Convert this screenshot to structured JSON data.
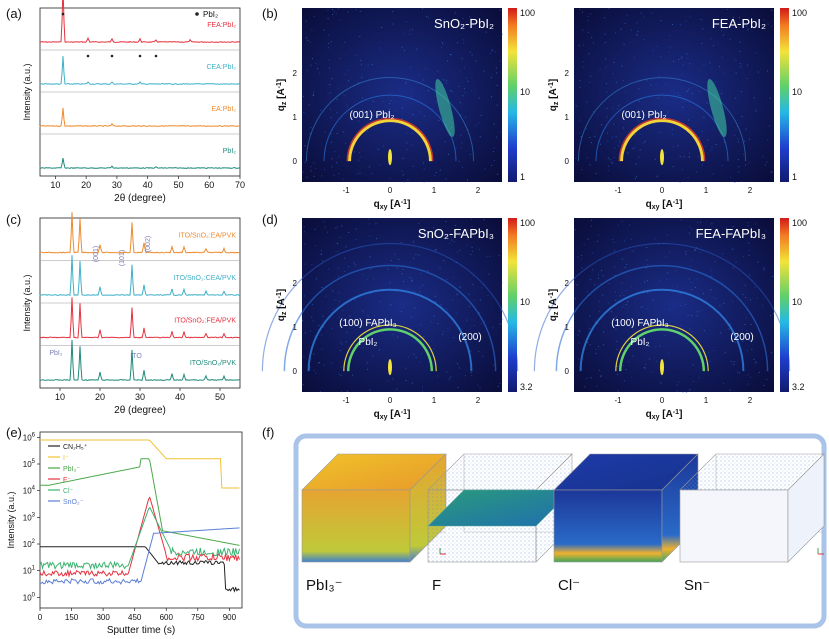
{
  "panel_labels": {
    "a": "(a)",
    "b": "(b)",
    "c": "(c)",
    "d": "(d)",
    "e": "(e)",
    "f": "(f)"
  },
  "panel_a": {
    "ylabel": "Intensity (a.u.)",
    "xlabel": "2θ (degree)",
    "xticks": [
      "10",
      "20",
      "30",
      "40",
      "50",
      "60",
      "70"
    ],
    "legend_marker_label": "PbI₂",
    "series": [
      {
        "name": "FEA:PbI₂",
        "color": "#e5323f"
      },
      {
        "name": "CEA:PbI₂",
        "color": "#3fb0c9"
      },
      {
        "name": "EA:PbI₂",
        "color": "#ee8a2e"
      },
      {
        "name": "PbI₂",
        "color": "#1f8a7a"
      }
    ]
  },
  "panel_c": {
    "ylabel": "Intensity (a.u.)",
    "xlabel": "2θ (degree)",
    "xticks": [
      "10",
      "20",
      "30",
      "40",
      "50"
    ],
    "peak_labels": [
      "(001)",
      "(101)",
      "(002)"
    ],
    "marker_labels": [
      "PbI₂",
      "ITO"
    ],
    "series": [
      {
        "name": "ITO/SnO₂:EA/PVK",
        "color": "#ee8a2e"
      },
      {
        "name": "ITO/SnO₂:CEA/PVK",
        "color": "#3fb0c9"
      },
      {
        "name": "ITO/SnO₂:FEA/PVK",
        "color": "#e5323f"
      },
      {
        "name": "ITO/SnO₂/PVK",
        "color": "#1f8a7a"
      }
    ]
  },
  "giwaxs": {
    "ylabel": "q",
    "ylabel_sub": "z",
    "xlabel": "q",
    "xlabel_sub": "xy",
    "unit": " [A",
    "unit_exp": "-1",
    "unit_close": "]",
    "xticks": [
      "-1",
      "0",
      "1",
      "2"
    ],
    "yticks": [
      "0",
      "1",
      "2"
    ],
    "b_titles": [
      "SnO₂-PbI₂",
      "FEA-PbI₂"
    ],
    "b_ring_label": "(001) PbI₂",
    "b_colorbar": [
      "100",
      "10",
      "1"
    ],
    "d_titles": [
      "SnO₂-FAPbI₃",
      "FEA-FAPbI₃"
    ],
    "d_ring_labels": [
      "(100) FAPbI₃",
      "PbI₂",
      "(200)"
    ],
    "d_colorbar": [
      "100",
      "10",
      "3.2"
    ]
  },
  "panel_e": {
    "ylabel": "Intensity (a.u.)",
    "xlabel": "Sputter time (s)",
    "xticks": [
      "0",
      "150",
      "300",
      "450",
      "600",
      "750",
      "900"
    ],
    "yticks": [
      "10",
      "10",
      "10",
      "10",
      "10",
      "10",
      "10"
    ],
    "yticks_exp": [
      "0",
      "1",
      "2",
      "3",
      "4",
      "5",
      "6"
    ],
    "series": [
      {
        "name": "CN₂H₅⁺",
        "color": "#222222"
      },
      {
        "name": "I⁻",
        "color": "#f2c230"
      },
      {
        "name": "PbI₃⁻",
        "color": "#4aa84a"
      },
      {
        "name": "F⁻",
        "color": "#e5323f"
      },
      {
        "name": "Cl⁻",
        "color": "#3cb371"
      },
      {
        "name": "SnO₂⁻",
        "color": "#5b7fd6"
      }
    ]
  },
  "panel_f": {
    "labels": [
      "PbI₃⁻",
      "F",
      "Cl⁻",
      "Sn⁻"
    ]
  }
}
